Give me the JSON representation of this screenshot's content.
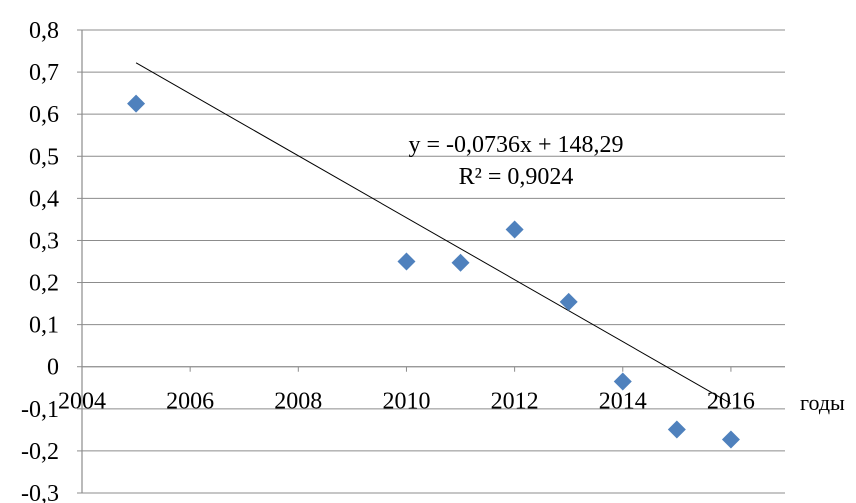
{
  "chart_data": {
    "type": "scatter",
    "series": [
      {
        "marker": "diamond",
        "color": "#4f81bd",
        "x": [
          2005,
          2010,
          2011,
          2012,
          2013,
          2014,
          2015,
          2016
        ],
        "y": [
          0.625,
          0.25,
          0.247,
          0.326,
          0.154,
          -0.035,
          -0.149,
          -0.173
        ]
      }
    ],
    "trendline": {
      "type": "linear",
      "slope": -0.0736,
      "intercept": 148.29,
      "x_range": [
        2005,
        2016
      ],
      "color": "#000000"
    },
    "equation_text": "y = -0,0736x + 148,29",
    "r2_text": "R² = 0,9024",
    "xlabel": "годы",
    "ylabel": "",
    "title": "",
    "xlim": [
      2004,
      2017
    ],
    "ylim": [
      -0.3,
      0.8
    ],
    "x_ticks": [
      2004,
      2006,
      2008,
      2010,
      2012,
      2014,
      2016
    ],
    "x_tick_labels": [
      "2004",
      "2006",
      "2008",
      "2010",
      "2012",
      "2014",
      "2016"
    ],
    "y_ticks": [
      0.8,
      0.7,
      0.6,
      0.5,
      0.4,
      0.3,
      0.2,
      0.1,
      0,
      -0.1,
      -0.2,
      -0.3
    ],
    "y_tick_labels": [
      "0,8",
      "0,7",
      "0,6",
      "0,5",
      "0,4",
      "0,3",
      "0,2",
      "0,1",
      "0",
      "-0,1",
      "-0,2",
      "-0,3"
    ],
    "grid": true,
    "legend": "none"
  }
}
